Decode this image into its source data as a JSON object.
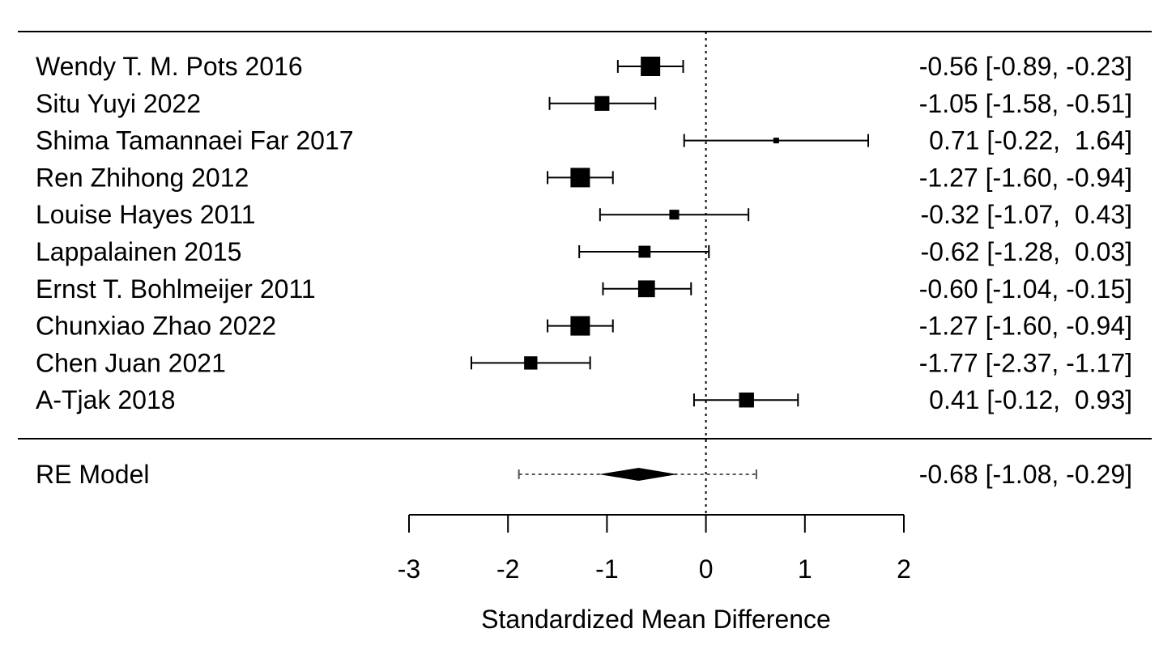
{
  "chart_data": {
    "type": "forest",
    "xlabel": "Standardized Mean Difference",
    "xlim": [
      -3,
      2
    ],
    "xticks": [
      -3,
      -2,
      -1,
      0,
      1,
      2
    ],
    "xtick_labels": [
      "-3",
      "-2",
      "-1",
      "0",
      "1",
      "2"
    ],
    "reference_line": 0,
    "studies": [
      {
        "label": "Wendy T. M. Pots 2016",
        "estimate": -0.56,
        "lower": -0.89,
        "upper": -0.23,
        "ci_text": "-0.56 [-0.89, -0.23]"
      },
      {
        "label": "Situ Yuyi 2022",
        "estimate": -1.05,
        "lower": -1.58,
        "upper": -0.51,
        "ci_text": "-1.05 [-1.58, -0.51]"
      },
      {
        "label": "Shima Tamannaei Far 2017",
        "estimate": 0.71,
        "lower": -0.22,
        "upper": 1.64,
        "ci_text": "0.71 [-0.22,  1.64]"
      },
      {
        "label": "Ren Zhihong 2012",
        "estimate": -1.27,
        "lower": -1.6,
        "upper": -0.94,
        "ci_text": "-1.27 [-1.60, -0.94]"
      },
      {
        "label": "Louise Hayes 2011",
        "estimate": -0.32,
        "lower": -1.07,
        "upper": 0.43,
        "ci_text": "-0.32 [-1.07,  0.43]"
      },
      {
        "label": "Lappalainen 2015",
        "estimate": -0.62,
        "lower": -1.28,
        "upper": 0.03,
        "ci_text": "-0.62 [-1.28,  0.03]"
      },
      {
        "label": "Ernst T. Bohlmeijer 2011",
        "estimate": -0.6,
        "lower": -1.04,
        "upper": -0.15,
        "ci_text": "-0.60 [-1.04, -0.15]"
      },
      {
        "label": "Chunxiao Zhao 2022",
        "estimate": -1.27,
        "lower": -1.6,
        "upper": -0.94,
        "ci_text": "-1.27 [-1.60, -0.94]"
      },
      {
        "label": "Chen Juan 2021",
        "estimate": -1.77,
        "lower": -2.37,
        "upper": -1.17,
        "ci_text": "-1.77 [-2.37, -1.17]"
      },
      {
        "label": "A-Tjak 2018",
        "estimate": 0.41,
        "lower": -0.12,
        "upper": 0.93,
        "ci_text": "0.41 [-0.12,  0.93]"
      }
    ],
    "summary": {
      "label": "RE Model",
      "estimate": -0.68,
      "lower": -1.08,
      "upper": -0.29,
      "pi_lower": -1.89,
      "pi_upper": 0.51,
      "ci_text": "-0.68 [-1.08, -0.29]"
    }
  }
}
